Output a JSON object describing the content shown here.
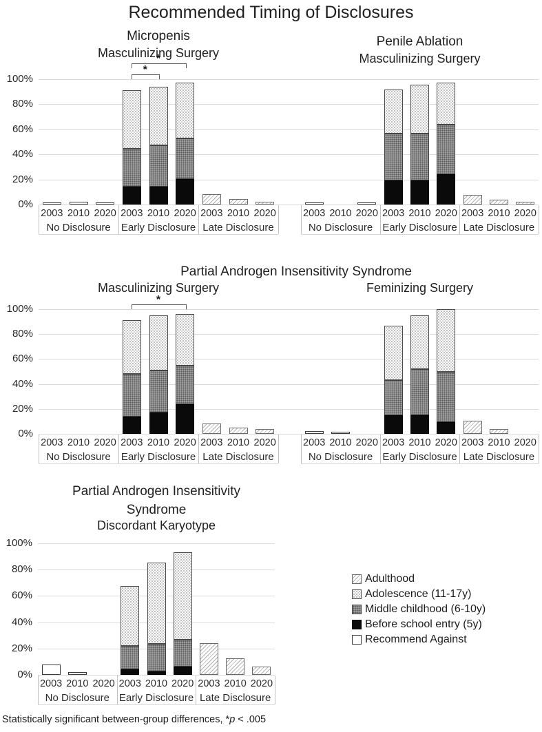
{
  "title": "Recommended Timing of Disclosures",
  "middle_section_title": "Partial Androgen Insensitivity Syndrome",
  "axis": {
    "y_ticks_top_to_bottom": [
      "100%",
      "80%",
      "60%",
      "40%",
      "20%",
      "0%"
    ],
    "years": [
      "2003",
      "2010",
      "2020"
    ],
    "groups": [
      "No Disclosure",
      "Early Disclosure",
      "Late Disclosure"
    ]
  },
  "stack_order_bottom_to_top": [
    "recommend_against",
    "before_school_entry",
    "middle_childhood",
    "adolescence",
    "adulthood"
  ],
  "legend": {
    "items": [
      {
        "key": "adulthood",
        "label": "Adulthood"
      },
      {
        "key": "adolescence",
        "label": "Adolescence (11-17y)"
      },
      {
        "key": "middle_childhood",
        "label": "Middle childhood (6-10y)"
      },
      {
        "key": "before_school_entry",
        "label": "Before school entry (5y)"
      },
      {
        "key": "recommend_against",
        "label": "Recommend Against"
      }
    ]
  },
  "footnote": {
    "prefix": "Statistically significant between-group differences, *",
    "italic": "p",
    "suffix": " < .005"
  },
  "chart_data": [
    {
      "id": "micropenis-masculinizing-surgery",
      "type": "bar",
      "stacked": true,
      "unit": "%",
      "ylim": [
        0,
        100
      ],
      "grid": true,
      "title": "Micropenis",
      "subtitle": "Masculinizing Surgery",
      "bars": {
        "No Disclosure": {
          "2003": {
            "recommend_against": 1.5
          },
          "2010": {
            "recommend_against": 2
          },
          "2020": {
            "recommend_against": 1.5
          }
        },
        "Early Disclosure": {
          "2003": {
            "before_school_entry": 14,
            "middle_childhood": 30.5,
            "adolescence": 46.5
          },
          "2010": {
            "before_school_entry": 14,
            "middle_childhood": 33,
            "adolescence": 47
          },
          "2020": {
            "before_school_entry": 20.5,
            "middle_childhood": 32.5,
            "adolescence": 44
          }
        },
        "Late Disclosure": {
          "2003": {
            "adulthood": 8
          },
          "2010": {
            "adulthood": 4.5
          },
          "2020": {
            "adulthood": 2
          }
        }
      },
      "brackets": [
        {
          "group": "Early Disclosure",
          "from": "2003",
          "to": "2010",
          "label": "*",
          "level": 1
        },
        {
          "group": "Early Disclosure",
          "from": "2003",
          "to": "2020",
          "label": "*",
          "level": 2
        }
      ]
    },
    {
      "id": "penile-ablation-masculinizing-surgery",
      "type": "bar",
      "stacked": true,
      "unit": "%",
      "ylim": [
        0,
        100
      ],
      "grid": true,
      "title": "Penile Ablation",
      "subtitle": "Masculinizing Surgery",
      "bars": {
        "No Disclosure": {
          "2003": {
            "recommend_against": 1
          },
          "2010": {},
          "2020": {
            "recommend_against": 1
          }
        },
        "Early Disclosure": {
          "2003": {
            "before_school_entry": 19,
            "middle_childhood": 37.5,
            "adolescence": 35.5
          },
          "2010": {
            "before_school_entry": 19,
            "middle_childhood": 37.5,
            "adolescence": 39
          },
          "2020": {
            "before_school_entry": 24,
            "middle_childhood": 39.5,
            "adolescence": 34
          }
        },
        "Late Disclosure": {
          "2003": {
            "adulthood": 7.5
          },
          "2010": {
            "adulthood": 4
          },
          "2020": {
            "adulthood": 2
          }
        }
      },
      "brackets": []
    },
    {
      "id": "pais-masculinizing-surgery",
      "type": "bar",
      "stacked": true,
      "unit": "%",
      "ylim": [
        0,
        100
      ],
      "grid": true,
      "subtitle": "Masculinizing Surgery",
      "bars": {
        "No Disclosure": {
          "2003": {},
          "2010": {},
          "2020": {}
        },
        "Early Disclosure": {
          "2003": {
            "before_school_entry": 14,
            "middle_childhood": 34,
            "adolescence": 43
          },
          "2010": {
            "before_school_entry": 17,
            "middle_childhood": 34,
            "adolescence": 44
          },
          "2020": {
            "before_school_entry": 24,
            "middle_childhood": 30.5,
            "adolescence": 41.5
          }
        },
        "Late Disclosure": {
          "2003": {
            "adulthood": 8.5
          },
          "2010": {
            "adulthood": 5
          },
          "2020": {
            "adulthood": 4
          }
        }
      },
      "brackets": [
        {
          "group": "Early Disclosure",
          "from": "2003",
          "to": "2020",
          "label": "*",
          "level": 1
        }
      ]
    },
    {
      "id": "pais-feminizing-surgery",
      "type": "bar",
      "stacked": true,
      "unit": "%",
      "ylim": [
        0,
        100
      ],
      "grid": true,
      "subtitle": "Feminizing Surgery",
      "bars": {
        "No Disclosure": {
          "2003": {
            "recommend_against": 2.5
          },
          "2010": {
            "recommend_against": 1
          },
          "2020": {}
        },
        "Early Disclosure": {
          "2003": {
            "before_school_entry": 15,
            "middle_childhood": 28,
            "adolescence": 44
          },
          "2010": {
            "before_school_entry": 15,
            "middle_childhood": 37,
            "adolescence": 43
          },
          "2020": {
            "before_school_entry": 9.5,
            "middle_childhood": 40.5,
            "adolescence": 50
          }
        },
        "Late Disclosure": {
          "2003": {
            "adulthood": 10.5
          },
          "2010": {
            "adulthood": 4
          },
          "2020": {}
        }
      },
      "brackets": []
    },
    {
      "id": "pais-discordant-karyotype",
      "type": "bar",
      "stacked": true,
      "unit": "%",
      "ylim": [
        0,
        100
      ],
      "grid": true,
      "title": "Partial Androgen Insensitivity Syndrome",
      "subtitle": "Discordant Karyotype",
      "bars": {
        "No Disclosure": {
          "2003": {
            "recommend_against": 8
          },
          "2010": {
            "recommend_against": 2
          },
          "2020": {}
        },
        "Early Disclosure": {
          "2003": {
            "before_school_entry": 4,
            "middle_childhood": 18,
            "adolescence": 45.5
          },
          "2010": {
            "before_school_entry": 2.5,
            "middle_childhood": 21,
            "adolescence": 62
          },
          "2020": {
            "before_school_entry": 6.5,
            "middle_childhood": 20,
            "adolescence": 66.5
          }
        },
        "Late Disclosure": {
          "2003": {
            "adulthood": 24
          },
          "2010": {
            "adulthood": 12.5
          },
          "2020": {
            "adulthood": 6.5
          }
        }
      },
      "brackets": []
    }
  ]
}
